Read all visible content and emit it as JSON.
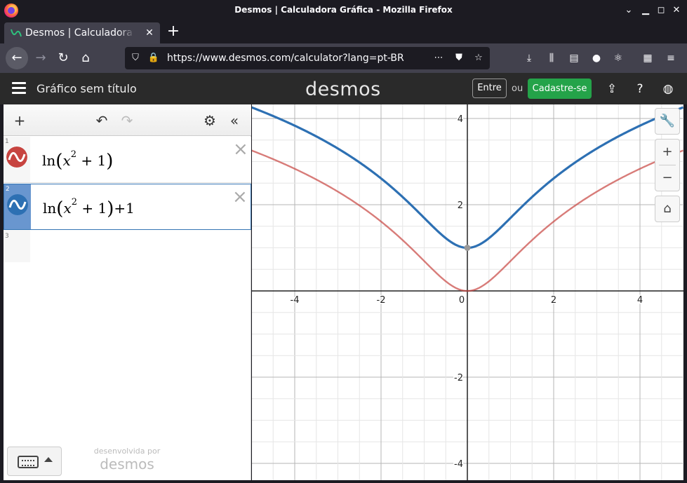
{
  "window": {
    "title": "Desmos | Calculadora Gráfica - Mozilla Firefox"
  },
  "tabs": [
    {
      "label": "Desmos | Calculadora Gráfica"
    }
  ],
  "urlbar": {
    "url": "https://www.desmos.com/calculator?lang=pt-BR"
  },
  "header": {
    "graph_title": "Gráfico sem título",
    "logo": "desmos",
    "login_label": "Entre",
    "or_label": "ou",
    "signup_label": "Cadastre-se"
  },
  "expressions": [
    {
      "index": "1",
      "fn": "ln",
      "var": "x",
      "exp": "2",
      "tail": "+ 1",
      "suffix": "",
      "color": "#c74440"
    },
    {
      "index": "2",
      "fn": "ln",
      "var": "x",
      "exp": "2",
      "tail": "+ 1",
      "suffix": "+1",
      "color": "#2d70b3"
    }
  ],
  "empty_expression_index": "3",
  "footer": {
    "powered_by": "desenvolvida por",
    "brand": "desmos"
  },
  "icons": {
    "browser_logo": "firefox-logo-icon",
    "tab_favicon": "desmos-favicon-icon",
    "nav": [
      "back-arrow-icon",
      "forward-arrow-icon",
      "reload-icon",
      "home-icon"
    ],
    "toolbar": [
      "downloads-icon",
      "library-icon",
      "sidebar-icon",
      "account-icon",
      "extension-icon",
      "extensions-puzzle-icon",
      "overflow-menu-icon"
    ],
    "header": [
      "share-icon",
      "help-icon",
      "language-globe-icon"
    ],
    "graph_tools": [
      "wrench-icon",
      "zoom-in-icon",
      "zoom-out-icon",
      "home-icon"
    ]
  },
  "chart_data": {
    "type": "line",
    "xlim": [
      -5,
      5
    ],
    "ylim": [
      -4.3,
      4.3
    ],
    "x_ticks": [
      -4,
      -2,
      0,
      2,
      4
    ],
    "y_ticks": [
      -4,
      -2,
      2,
      4
    ],
    "grid": true,
    "series": [
      {
        "latex": "ln(x^2+1)",
        "color": "#c74440",
        "offset": 0
      },
      {
        "latex": "ln(x^2+1)+1",
        "color": "#2d70b3",
        "offset": 1
      }
    ],
    "points": [
      {
        "x": 0,
        "y": 1
      }
    ]
  }
}
